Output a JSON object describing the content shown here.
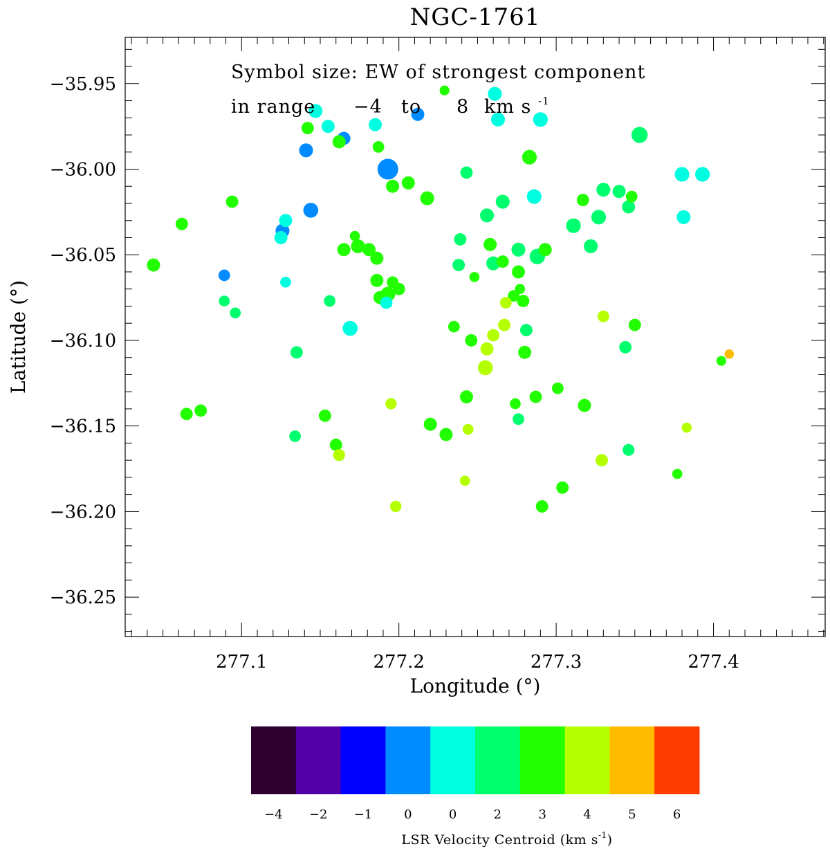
{
  "chart_data": {
    "type": "scatter",
    "title": "NGC-1761",
    "xlabel": "Longitude (°)",
    "ylabel": "Latitude (°)",
    "xlim": [
      277.026,
      277.471
    ],
    "ylim": [
      -36.273,
      -35.923
    ],
    "xticks": [
      277.1,
      277.2,
      277.3,
      277.4
    ],
    "xtick_labels": [
      "277.1",
      "277.2",
      "277.3",
      "277.4"
    ],
    "yticks": [
      -35.95,
      -36.0,
      -36.05,
      -36.1,
      -36.15,
      -36.2,
      -36.25
    ],
    "ytick_labels": [
      "−35.95",
      "−36.00",
      "−36.05",
      "−36.10",
      "−36.15",
      "−36.20",
      "−36.25"
    ],
    "annotation": {
      "line1": "Symbol size: EW of strongest component",
      "line2_prefix": "in range",
      "range_low": "−4",
      "range_to": "to",
      "range_high": "8",
      "unit_main": "km s",
      "unit_sup": "-1"
    },
    "colorbar": {
      "title_main": "LSR Velocity Centroid (km s",
      "title_sup": "-1",
      "title_end": ")",
      "labels": [
        "−4",
        "−2",
        "−1",
        "0",
        "0",
        "2",
        "3",
        "4",
        "5",
        "6"
      ],
      "colors": [
        "#2d0030",
        "#5200a8",
        "#0000ff",
        "#008cff",
        "#00ffe0",
        "#00ff6e",
        "#22ff00",
        "#b4ff00",
        "#ffbb00",
        "#ff3c00"
      ]
    },
    "points": [
      {
        "lon": 277.229,
        "lat": -35.954,
        "size": 0.28,
        "color": "#22ff00"
      },
      {
        "lon": 277.261,
        "lat": -35.956,
        "size": 0.55,
        "color": "#00ffe0"
      },
      {
        "lon": 277.147,
        "lat": -35.966,
        "size": 0.55,
        "color": "#00ffe0"
      },
      {
        "lon": 277.212,
        "lat": -35.968,
        "size": 0.5,
        "color": "#008cff"
      },
      {
        "lon": 277.263,
        "lat": -35.971,
        "size": 0.55,
        "color": "#00ffe0"
      },
      {
        "lon": 277.29,
        "lat": -35.971,
        "size": 0.6,
        "color": "#00ffe0"
      },
      {
        "lon": 277.185,
        "lat": -35.974,
        "size": 0.5,
        "color": "#00ffe0"
      },
      {
        "lon": 277.155,
        "lat": -35.975,
        "size": 0.5,
        "color": "#00ffe0"
      },
      {
        "lon": 277.142,
        "lat": -35.976,
        "size": 0.45,
        "color": "#22ff00"
      },
      {
        "lon": 277.353,
        "lat": -35.98,
        "size": 0.7,
        "color": "#00ff6e"
      },
      {
        "lon": 277.165,
        "lat": -35.982,
        "size": 0.5,
        "color": "#008cff"
      },
      {
        "lon": 277.162,
        "lat": -35.984,
        "size": 0.5,
        "color": "#22ff00"
      },
      {
        "lon": 277.187,
        "lat": -35.987,
        "size": 0.4,
        "color": "#22ff00"
      },
      {
        "lon": 277.141,
        "lat": -35.989,
        "size": 0.55,
        "color": "#008cff"
      },
      {
        "lon": 277.283,
        "lat": -35.993,
        "size": 0.6,
        "color": "#22ff00"
      },
      {
        "lon": 277.193,
        "lat": -36.0,
        "size": 1.0,
        "color": "#008cff"
      },
      {
        "lon": 277.243,
        "lat": -36.002,
        "size": 0.45,
        "color": "#00ff6e"
      },
      {
        "lon": 277.38,
        "lat": -36.003,
        "size": 0.6,
        "color": "#00ffe0"
      },
      {
        "lon": 277.393,
        "lat": -36.003,
        "size": 0.6,
        "color": "#00ffe0"
      },
      {
        "lon": 277.206,
        "lat": -36.008,
        "size": 0.5,
        "color": "#22ff00"
      },
      {
        "lon": 277.196,
        "lat": -36.01,
        "size": 0.5,
        "color": "#22ff00"
      },
      {
        "lon": 277.33,
        "lat": -36.012,
        "size": 0.55,
        "color": "#00ff6e"
      },
      {
        "lon": 277.34,
        "lat": -36.013,
        "size": 0.5,
        "color": "#00ff6e"
      },
      {
        "lon": 277.348,
        "lat": -36.016,
        "size": 0.4,
        "color": "#22ff00"
      },
      {
        "lon": 277.286,
        "lat": -36.016,
        "size": 0.6,
        "color": "#00ffe0"
      },
      {
        "lon": 277.218,
        "lat": -36.017,
        "size": 0.55,
        "color": "#22ff00"
      },
      {
        "lon": 277.317,
        "lat": -36.018,
        "size": 0.45,
        "color": "#22ff00"
      },
      {
        "lon": 277.094,
        "lat": -36.019,
        "size": 0.45,
        "color": "#22ff00"
      },
      {
        "lon": 277.266,
        "lat": -36.019,
        "size": 0.55,
        "color": "#00ff6e"
      },
      {
        "lon": 277.346,
        "lat": -36.022,
        "size": 0.5,
        "color": "#00ff6e"
      },
      {
        "lon": 277.144,
        "lat": -36.024,
        "size": 0.62,
        "color": "#008cff"
      },
      {
        "lon": 277.256,
        "lat": -36.027,
        "size": 0.55,
        "color": "#00ff6e"
      },
      {
        "lon": 277.327,
        "lat": -36.028,
        "size": 0.6,
        "color": "#00ff6e"
      },
      {
        "lon": 277.381,
        "lat": -36.028,
        "size": 0.55,
        "color": "#00ffe0"
      },
      {
        "lon": 277.128,
        "lat": -36.03,
        "size": 0.5,
        "color": "#00ffe0"
      },
      {
        "lon": 277.062,
        "lat": -36.032,
        "size": 0.45,
        "color": "#22ff00"
      },
      {
        "lon": 277.311,
        "lat": -36.033,
        "size": 0.6,
        "color": "#00ff6e"
      },
      {
        "lon": 277.126,
        "lat": -36.036,
        "size": 0.55,
        "color": "#008cff"
      },
      {
        "lon": 277.172,
        "lat": -36.039,
        "size": 0.3,
        "color": "#22ff00"
      },
      {
        "lon": 277.125,
        "lat": -36.04,
        "size": 0.5,
        "color": "#00ffe0"
      },
      {
        "lon": 277.239,
        "lat": -36.041,
        "size": 0.45,
        "color": "#00ff6e"
      },
      {
        "lon": 277.258,
        "lat": -36.044,
        "size": 0.5,
        "color": "#22ff00"
      },
      {
        "lon": 277.322,
        "lat": -36.045,
        "size": 0.55,
        "color": "#00ff6e"
      },
      {
        "lon": 277.174,
        "lat": -36.045,
        "size": 0.55,
        "color": "#22ff00"
      },
      {
        "lon": 277.165,
        "lat": -36.047,
        "size": 0.5,
        "color": "#22ff00"
      },
      {
        "lon": 277.181,
        "lat": -36.047,
        "size": 0.5,
        "color": "#22ff00"
      },
      {
        "lon": 277.276,
        "lat": -36.047,
        "size": 0.55,
        "color": "#00ff6e"
      },
      {
        "lon": 277.293,
        "lat": -36.047,
        "size": 0.5,
        "color": "#22ff00"
      },
      {
        "lon": 277.288,
        "lat": -36.051,
        "size": 0.65,
        "color": "#00ff6e"
      },
      {
        "lon": 277.186,
        "lat": -36.052,
        "size": 0.5,
        "color": "#22ff00"
      },
      {
        "lon": 277.266,
        "lat": -36.054,
        "size": 0.45,
        "color": "#22ff00"
      },
      {
        "lon": 277.26,
        "lat": -36.055,
        "size": 0.55,
        "color": "#00ff6e"
      },
      {
        "lon": 277.238,
        "lat": -36.056,
        "size": 0.45,
        "color": "#00ff6e"
      },
      {
        "lon": 277.044,
        "lat": -36.056,
        "size": 0.5,
        "color": "#22ff00"
      },
      {
        "lon": 277.276,
        "lat": -36.06,
        "size": 0.5,
        "color": "#22ff00"
      },
      {
        "lon": 277.089,
        "lat": -36.062,
        "size": 0.4,
        "color": "#008cff"
      },
      {
        "lon": 277.248,
        "lat": -36.063,
        "size": 0.3,
        "color": "#22ff00"
      },
      {
        "lon": 277.186,
        "lat": -36.065,
        "size": 0.5,
        "color": "#22ff00"
      },
      {
        "lon": 277.128,
        "lat": -36.066,
        "size": 0.35,
        "color": "#00ffe0"
      },
      {
        "lon": 277.196,
        "lat": -36.066,
        "size": 0.4,
        "color": "#22ff00"
      },
      {
        "lon": 277.277,
        "lat": -36.07,
        "size": 0.3,
        "color": "#22ff00"
      },
      {
        "lon": 277.2,
        "lat": -36.07,
        "size": 0.45,
        "color": "#22ff00"
      },
      {
        "lon": 277.273,
        "lat": -36.074,
        "size": 0.4,
        "color": "#22ff00"
      },
      {
        "lon": 277.188,
        "lat": -36.075,
        "size": 0.5,
        "color": "#22ff00"
      },
      {
        "lon": 277.193,
        "lat": -36.073,
        "size": 0.6,
        "color": "#22ff00"
      },
      {
        "lon": 277.192,
        "lat": -36.078,
        "size": 0.45,
        "color": "#00ffe0"
      },
      {
        "lon": 277.089,
        "lat": -36.077,
        "size": 0.35,
        "color": "#00ff6e"
      },
      {
        "lon": 277.156,
        "lat": -36.077,
        "size": 0.4,
        "color": "#00ff6e"
      },
      {
        "lon": 277.268,
        "lat": -36.078,
        "size": 0.4,
        "color": "#b4ff00"
      },
      {
        "lon": 277.279,
        "lat": -36.077,
        "size": 0.45,
        "color": "#22ff00"
      },
      {
        "lon": 277.096,
        "lat": -36.084,
        "size": 0.35,
        "color": "#00ff6e"
      },
      {
        "lon": 277.33,
        "lat": -36.086,
        "size": 0.4,
        "color": "#b4ff00"
      },
      {
        "lon": 277.35,
        "lat": -36.091,
        "size": 0.45,
        "color": "#22ff00"
      },
      {
        "lon": 277.267,
        "lat": -36.091,
        "size": 0.45,
        "color": "#b4ff00"
      },
      {
        "lon": 277.235,
        "lat": -36.092,
        "size": 0.4,
        "color": "#22ff00"
      },
      {
        "lon": 277.169,
        "lat": -36.093,
        "size": 0.62,
        "color": "#00ffe0"
      },
      {
        "lon": 277.281,
        "lat": -36.094,
        "size": 0.45,
        "color": "#00ff6e"
      },
      {
        "lon": 277.26,
        "lat": -36.097,
        "size": 0.45,
        "color": "#b4ff00"
      },
      {
        "lon": 277.246,
        "lat": -36.1,
        "size": 0.45,
        "color": "#22ff00"
      },
      {
        "lon": 277.344,
        "lat": -36.104,
        "size": 0.45,
        "color": "#00ff6e"
      },
      {
        "lon": 277.256,
        "lat": -36.105,
        "size": 0.5,
        "color": "#b4ff00"
      },
      {
        "lon": 277.135,
        "lat": -36.107,
        "size": 0.45,
        "color": "#00ff6e"
      },
      {
        "lon": 277.28,
        "lat": -36.107,
        "size": 0.5,
        "color": "#22ff00"
      },
      {
        "lon": 277.41,
        "lat": -36.108,
        "size": 0.25,
        "color": "#ffbb00"
      },
      {
        "lon": 277.405,
        "lat": -36.112,
        "size": 0.28,
        "color": "#22ff00"
      },
      {
        "lon": 277.255,
        "lat": -36.116,
        "size": 0.62,
        "color": "#b4ff00"
      },
      {
        "lon": 277.301,
        "lat": -36.128,
        "size": 0.4,
        "color": "#22ff00"
      },
      {
        "lon": 277.243,
        "lat": -36.133,
        "size": 0.5,
        "color": "#22ff00"
      },
      {
        "lon": 277.287,
        "lat": -36.133,
        "size": 0.45,
        "color": "#22ff00"
      },
      {
        "lon": 277.195,
        "lat": -36.137,
        "size": 0.38,
        "color": "#b4ff00"
      },
      {
        "lon": 277.274,
        "lat": -36.137,
        "size": 0.35,
        "color": "#22ff00"
      },
      {
        "lon": 277.318,
        "lat": -36.138,
        "size": 0.5,
        "color": "#22ff00"
      },
      {
        "lon": 277.074,
        "lat": -36.141,
        "size": 0.45,
        "color": "#22ff00"
      },
      {
        "lon": 277.065,
        "lat": -36.143,
        "size": 0.45,
        "color": "#22ff00"
      },
      {
        "lon": 277.153,
        "lat": -36.144,
        "size": 0.45,
        "color": "#22ff00"
      },
      {
        "lon": 277.276,
        "lat": -36.146,
        "size": 0.4,
        "color": "#00ff6e"
      },
      {
        "lon": 277.22,
        "lat": -36.149,
        "size": 0.5,
        "color": "#22ff00"
      },
      {
        "lon": 277.383,
        "lat": -36.151,
        "size": 0.3,
        "color": "#b4ff00"
      },
      {
        "lon": 277.244,
        "lat": -36.152,
        "size": 0.35,
        "color": "#b4ff00"
      },
      {
        "lon": 277.23,
        "lat": -36.155,
        "size": 0.5,
        "color": "#22ff00"
      },
      {
        "lon": 277.134,
        "lat": -36.156,
        "size": 0.4,
        "color": "#00ff6e"
      },
      {
        "lon": 277.16,
        "lat": -36.161,
        "size": 0.45,
        "color": "#22ff00"
      },
      {
        "lon": 277.346,
        "lat": -36.164,
        "size": 0.42,
        "color": "#00ff6e"
      },
      {
        "lon": 277.162,
        "lat": -36.167,
        "size": 0.42,
        "color": "#b4ff00"
      },
      {
        "lon": 277.329,
        "lat": -36.17,
        "size": 0.45,
        "color": "#b4ff00"
      },
      {
        "lon": 277.377,
        "lat": -36.178,
        "size": 0.3,
        "color": "#22ff00"
      },
      {
        "lon": 277.242,
        "lat": -36.182,
        "size": 0.3,
        "color": "#b4ff00"
      },
      {
        "lon": 277.304,
        "lat": -36.186,
        "size": 0.45,
        "color": "#22ff00"
      },
      {
        "lon": 277.198,
        "lat": -36.197,
        "size": 0.38,
        "color": "#b4ff00"
      },
      {
        "lon": 277.291,
        "lat": -36.197,
        "size": 0.45,
        "color": "#22ff00"
      }
    ]
  }
}
